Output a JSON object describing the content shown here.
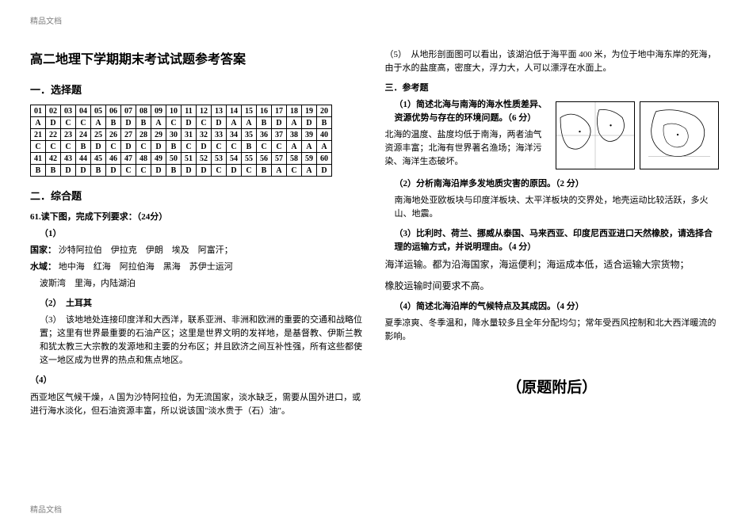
{
  "meta": {
    "header": "精品文档",
    "footer": "精品文档"
  },
  "left": {
    "title": "高二地理下学期期末考试试题参考答案",
    "sec1": "一．选择题",
    "answerTable": {
      "rows": [
        [
          "01",
          "02",
          "03",
          "04",
          "05",
          "06",
          "07",
          "08",
          "09",
          "10",
          "11",
          "12",
          "13",
          "14",
          "15",
          "16",
          "17",
          "18",
          "19",
          "20"
        ],
        [
          "A",
          "D",
          "C",
          "C",
          "A",
          "B",
          "D",
          "B",
          "A",
          "C",
          "D",
          "C",
          "D",
          "A",
          "A",
          "B",
          "D",
          "A",
          "D",
          "B"
        ],
        [
          "21",
          "22",
          "23",
          "24",
          "25",
          "26",
          "27",
          "28",
          "29",
          "30",
          "31",
          "32",
          "33",
          "34",
          "35",
          "36",
          "37",
          "38",
          "39",
          "40"
        ],
        [
          "C",
          "C",
          "C",
          "B",
          "D",
          "C",
          "D",
          "C",
          "D",
          "B",
          "C",
          "D",
          "C",
          "C",
          "B",
          "C",
          "C",
          "A",
          "A",
          "A"
        ],
        [
          "41",
          "42",
          "43",
          "44",
          "45",
          "46",
          "47",
          "48",
          "49",
          "50",
          "51",
          "52",
          "53",
          "54",
          "55",
          "56",
          "57",
          "58",
          "59",
          "60"
        ],
        [
          "B",
          "B",
          "D",
          "D",
          "B",
          "D",
          "C",
          "C",
          "D",
          "B",
          "D",
          "D",
          "C",
          "D",
          "C",
          "B",
          "A",
          "C",
          "A",
          "D"
        ]
      ]
    },
    "sec2": "二．综合题",
    "q61_head": "61.读下图，完成下列要求：（24分）",
    "q61_1": "（1）",
    "q61_country_label": "国家：",
    "q61_country": "沙特阿拉伯　伊拉克　伊朗　埃及　阿富汗；",
    "q61_water_label": "水域：",
    "q61_water": "地中海　红海　阿拉伯海　黑海　苏伊士运河",
    "q61_water2": "波斯湾　里海，内陆湖泊",
    "q61_2": "（2）　土耳其",
    "q61_3": "（3）　该地地处连接印度洋和大西洋，联系亚洲、非洲和欧洲的重要的交通和战略位置；这里有世界最重要的石油产区；这里是世界文明的发祥地，是基督教、伊斯兰教和犹太教三大宗教的发源地和主要的分布区；并且欧济之间互补性强，所有这些都使这一地区成为世界的热点和焦点地区。",
    "q61_4": "（4）",
    "q61_4t": "西亚地区气候干燥，A 国为沙特阿拉伯，为无流国家，淡水缺乏，需要从国外进口，或进行海水淡化，但石油资源丰富，所以说该国\"淡水贵于（石）油\"。"
  },
  "right": {
    "q61_5": "（5）　从地形剖面图可以看出，该湖泊低于海平面 400 米，为位于地中海东岸的死海，由于水的盐度高，密度大，浮力大，人可以漂浮在水面上。",
    "sec3": "三．参考题",
    "q1_bold": "（1）简述北海与南海的海水性质差异、资源优势与存在的环境问题。（6 分）",
    "q1_ans": "北海的温度、盐度均低于南海，两者油气资源丰富；北海有世界著名渔场；海洋污染、海洋生态破坏。",
    "q2_bold": "（2）分析南海沿岸多发地质灾害的原因。（2 分）",
    "q2_ans": "南海地处亚欧板块与印度洋板块、太平洋板块的交界处，地壳运动比较活跃，多火山、地震。",
    "q3_bold": "（3）比利时、荷兰、挪威从泰国、马来西亚、印度尼西亚进口天然橡胶，请选择合理的运输方式，并说明理由。（4 分）",
    "q3_ans1": "海洋运输。都为沿海国家，海运便利；海运成本低，适合运输大宗货物；",
    "q3_ans2": "橡胶运输时间要求不高。",
    "q4_bold": "（4）简述北海沿岸的气候特点及其成因。（4 分）",
    "q4_ans": "夏季凉爽、冬季温和，降水量较多且全年分配均匀；常年受西风控制和北大西洋暖流的影响。",
    "append": "（原题附后）"
  }
}
